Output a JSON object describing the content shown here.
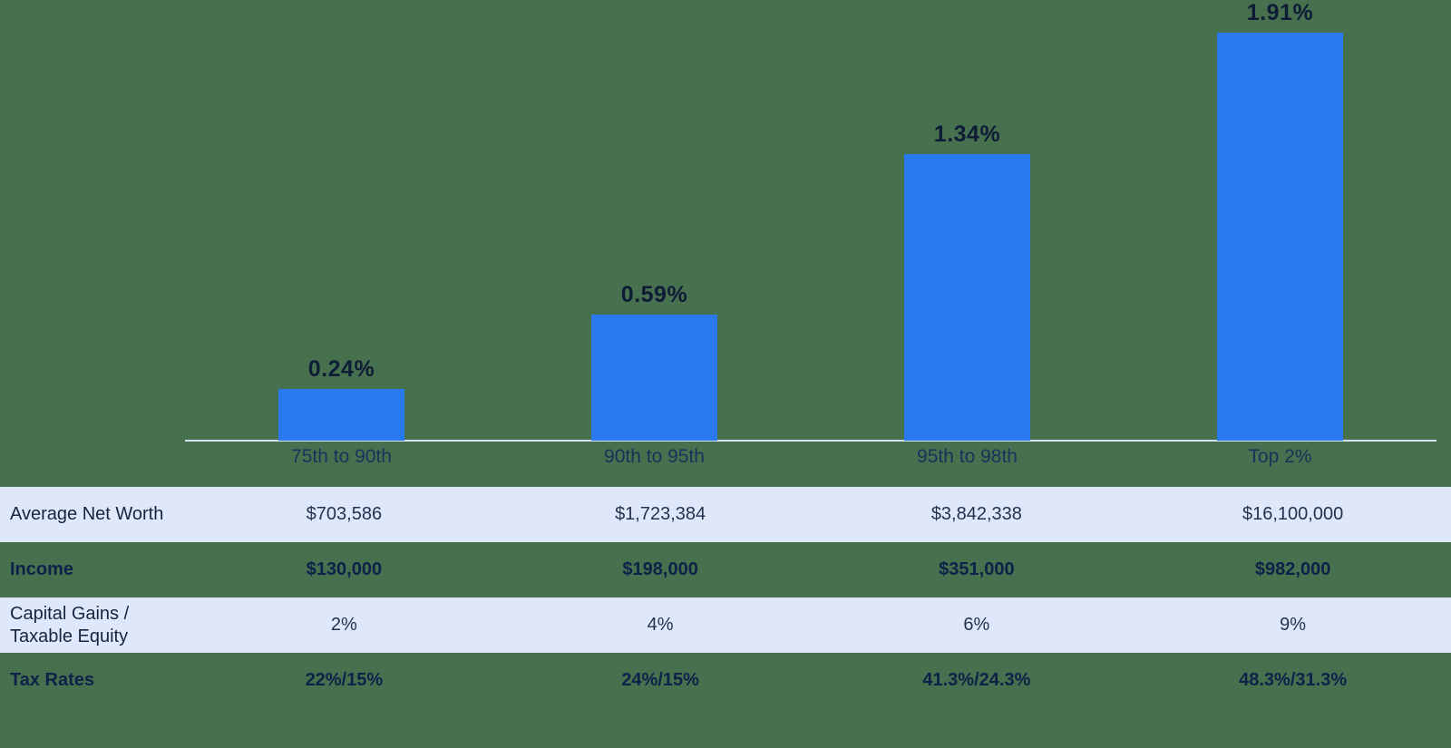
{
  "background_color": "#47714E",
  "chart_data": {
    "type": "bar",
    "title": "",
    "categories": [
      "75th to 90th",
      "90th to 95th",
      "95th to 98th",
      "Top 2%"
    ],
    "values": [
      0.24,
      0.59,
      1.34,
      1.91
    ],
    "value_labels": [
      "0.24%",
      "0.59%",
      "1.34%",
      "1.91%"
    ],
    "ylim": [
      0,
      2.0
    ],
    "grid": "off",
    "legend": "none",
    "bar_color": "#2B79EE",
    "value_label_color": "#0E1C36",
    "category_label_color": "#16335B",
    "axis_line_color": "#D7E1F4"
  },
  "table": {
    "column_centers": [
      "75th to 90th",
      "90th to 95th",
      "95th to 98th",
      "Top 2%"
    ],
    "shaded_row_color": "#DFE8FA",
    "rows": [
      {
        "label_lines": [
          "Average Net Worth"
        ],
        "bold": false,
        "shaded": true,
        "values": [
          "$703,586",
          "$1,723,384",
          "$3,842,338",
          "$16,100,000"
        ]
      },
      {
        "label_lines": [
          "Income"
        ],
        "bold": true,
        "shaded": false,
        "values": [
          "$130,000",
          "$198,000",
          "$351,000",
          "$982,000"
        ]
      },
      {
        "label_lines": [
          "Capital Gains /",
          "Taxable Equity"
        ],
        "bold": false,
        "shaded": true,
        "values": [
          "2%",
          "4%",
          "6%",
          "9%"
        ]
      },
      {
        "label_lines": [
          "Tax Rates"
        ],
        "bold": true,
        "shaded": false,
        "values": [
          "22%/15%",
          "24%/15%",
          "41.3%/24.3%",
          "48.3%/31.3%"
        ]
      }
    ]
  }
}
